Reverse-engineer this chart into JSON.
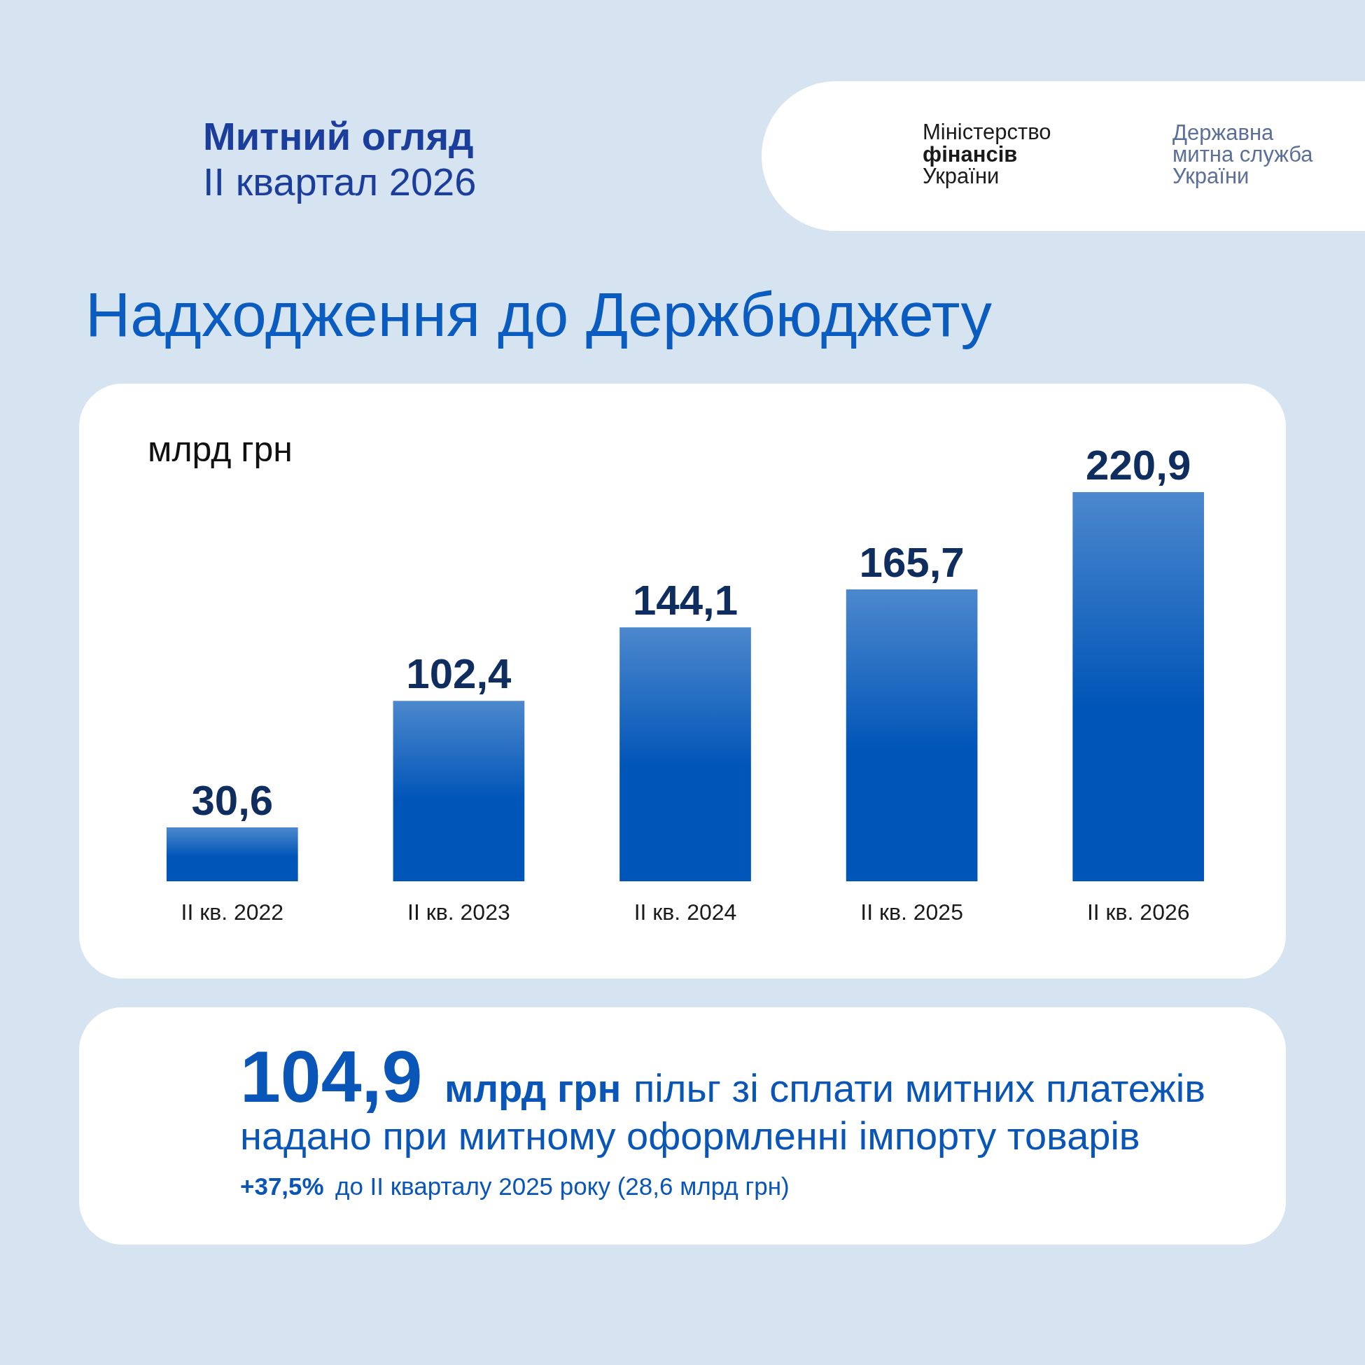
{
  "chart_data": {
    "type": "bar",
    "title": "Надходження до Держбюджету",
    "ylabel": "млрд грн",
    "categories": [
      "II кв. 2022",
      "II кв. 2023",
      "II кв. 2024",
      "II кв. 2025",
      "II кв. 2026"
    ],
    "values": [
      30.6,
      102.4,
      144.1,
      165.7,
      220.9
    ],
    "color": "#0055b8",
    "value_labels": [
      "30,6",
      "102,4",
      "144,1",
      "165,7",
      "220,9"
    ],
    "annotations": [
      "Митний огляд",
      "II квартал 2026",
      "Міністерство фінансів України",
      "Державна митна служба України",
      "104,9",
      "млрд грн",
      "пільг зі сплати митних платежів",
      "надано при митному оформленні імпорту товарів",
      "+37,5%",
      "до II кварталу 2025 року (28,6 млрд грн)"
    ]
  }
}
